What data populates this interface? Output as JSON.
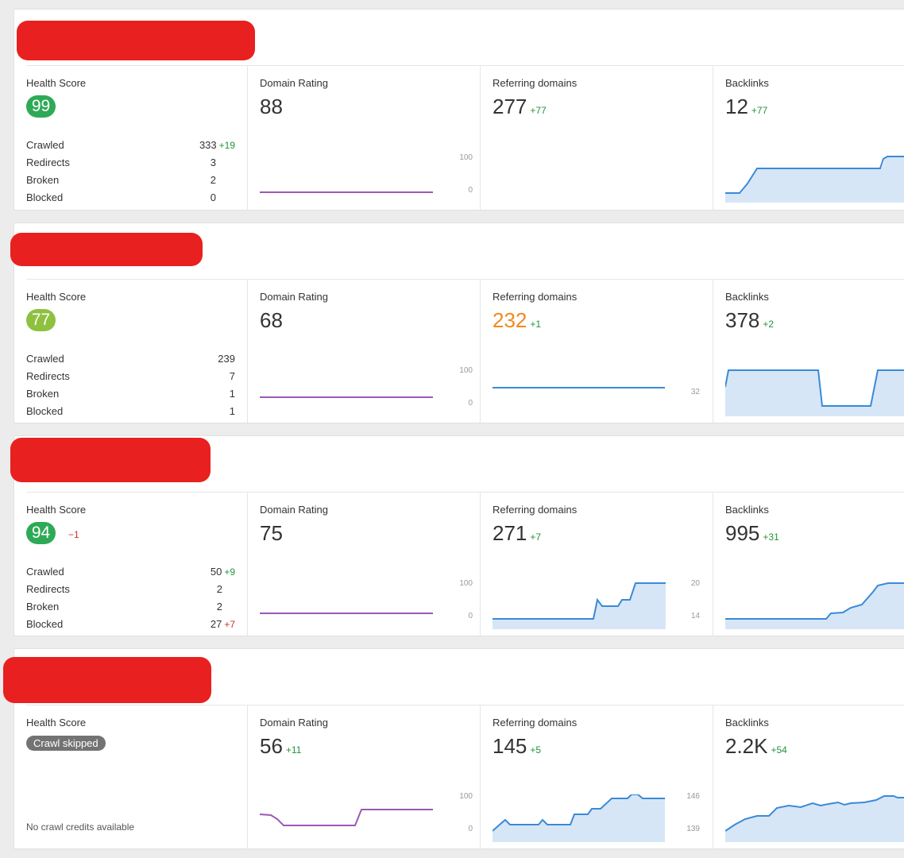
{
  "colors": {
    "green": "#23943b",
    "badge_green": "#2eaa57",
    "badge_lime": "#8ec13f",
    "orange": "#f08a1c",
    "red": "#d0302b",
    "purple": "#9b59b6",
    "blue": "#3a8ad8"
  },
  "labels": {
    "health_score": "Health Score",
    "domain_rating": "Domain Rating",
    "referring_domains": "Referring domains",
    "backlinks": "Backlinks",
    "crawled": "Crawled",
    "redirects": "Redirects",
    "broken": "Broken",
    "blocked": "Blocked"
  },
  "projects": [
    {
      "health": {
        "score": "99",
        "delta": "",
        "rows": {
          "crawled": "333",
          "crawled_delta": "+19",
          "redirects": "3",
          "redirects_delta": "",
          "broken": "2",
          "broken_delta": "",
          "blocked": "0",
          "blocked_delta": ""
        }
      },
      "domain_rating": {
        "value": "88",
        "delta": "",
        "axis_top": "100",
        "axis_bottom": "0"
      },
      "referring_domains": {
        "value": "277",
        "delta": "+77",
        "axis_top": "",
        "axis_bottom": ""
      },
      "backlinks": {
        "value": "12",
        "delta": "+77"
      }
    },
    {
      "health": {
        "score": "77",
        "delta": "",
        "rows": {
          "crawled": "239",
          "crawled_delta": "",
          "redirects": "7",
          "redirects_delta": "",
          "broken": "1",
          "broken_delta": "",
          "blocked": "1",
          "blocked_delta": ""
        }
      },
      "domain_rating": {
        "value": "68",
        "delta": "",
        "axis_top": "100",
        "axis_bottom": "0"
      },
      "referring_domains": {
        "value": "232",
        "delta": "+1",
        "axis_top": "",
        "axis_bottom": "32"
      },
      "backlinks": {
        "value": "378",
        "delta": "+2"
      }
    },
    {
      "health": {
        "score": "94",
        "delta": "−1",
        "rows": {
          "crawled": "50",
          "crawled_delta": "+9",
          "redirects": "2",
          "redirects_delta": "",
          "broken": "2",
          "broken_delta": "",
          "blocked": "27",
          "blocked_delta": "+7"
        }
      },
      "domain_rating": {
        "value": "75",
        "delta": "",
        "axis_top": "100",
        "axis_bottom": "0"
      },
      "referring_domains": {
        "value": "271",
        "delta": "+7",
        "axis_top": "20",
        "axis_bottom": "14"
      },
      "backlinks": {
        "value": "995",
        "delta": "+31"
      }
    },
    {
      "health": {
        "skip_label": "Crawl skipped",
        "note": "No crawl credits available"
      },
      "domain_rating": {
        "value": "56",
        "delta": "+11",
        "axis_top": "100",
        "axis_bottom": "0"
      },
      "referring_domains": {
        "value": "145",
        "delta": "+5",
        "axis_top": "146",
        "axis_bottom": "139"
      },
      "backlinks": {
        "value": "2.2K",
        "delta": "+54"
      }
    }
  ]
}
